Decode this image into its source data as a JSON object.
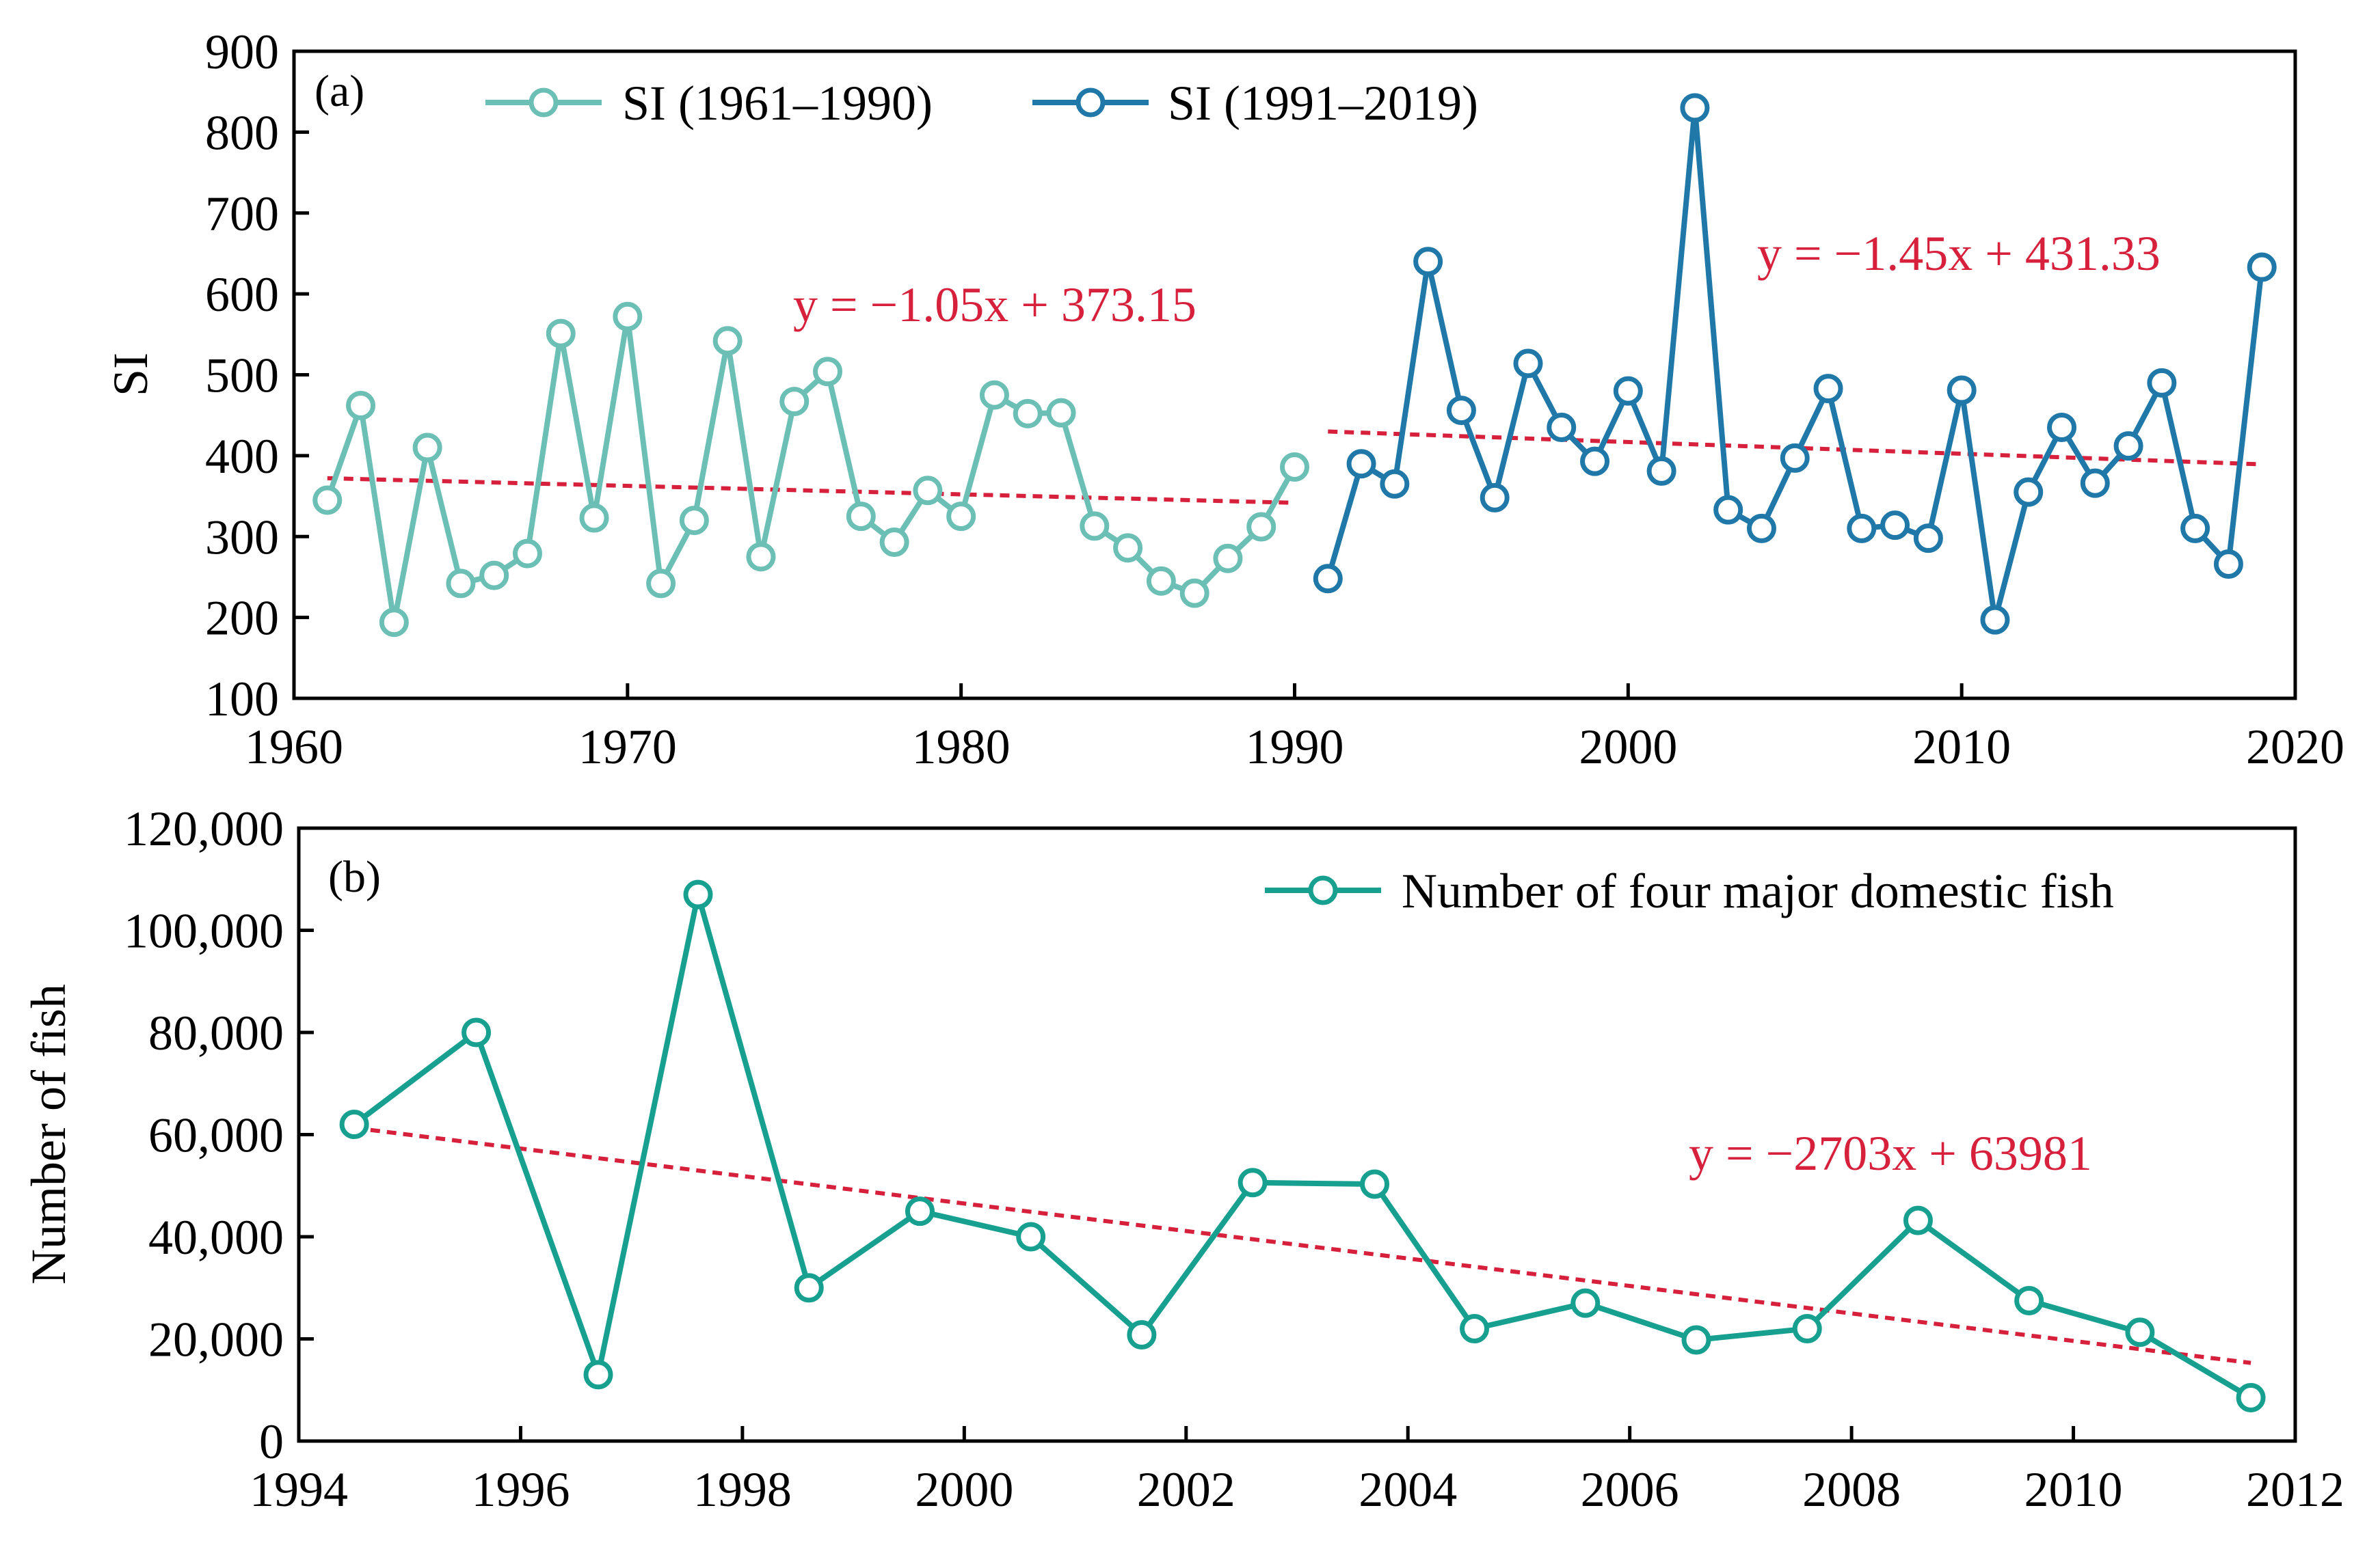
{
  "chart_data": [
    {
      "type": "line",
      "panel_label": "(a)",
      "ylabel": "SI",
      "xlim": [
        1960,
        2020
      ],
      "ylim": [
        100,
        900
      ],
      "x_ticks": [
        1960,
        1970,
        1980,
        1990,
        2000,
        2010,
        2020
      ],
      "y_ticks": [
        100,
        200,
        300,
        400,
        500,
        600,
        700,
        800,
        900
      ],
      "legend_position": "top-left",
      "series": [
        {
          "name": "SI (1961–1990)",
          "color": "#6cbfb5",
          "x": [
            1961,
            1962,
            1963,
            1964,
            1965,
            1966,
            1967,
            1968,
            1969,
            1970,
            1971,
            1972,
            1973,
            1974,
            1975,
            1976,
            1977,
            1978,
            1979,
            1980,
            1981,
            1982,
            1983,
            1984,
            1985,
            1986,
            1987,
            1988,
            1989,
            1990
          ],
          "y": [
            345,
            462,
            194,
            410,
            242,
            252,
            279,
            551,
            323,
            572,
            242,
            320,
            542,
            275,
            467,
            504,
            325,
            293,
            357,
            325,
            475,
            452,
            453,
            313,
            286,
            245,
            230,
            273,
            312,
            386
          ]
        },
        {
          "name": "SI (1991–2019)",
          "color": "#1f78a8",
          "x": [
            1991,
            1992,
            1993,
            1994,
            1995,
            1996,
            1997,
            1998,
            1999,
            2000,
            2001,
            2002,
            2003,
            2004,
            2005,
            2006,
            2007,
            2008,
            2009,
            2010,
            2011,
            2012,
            2013,
            2014,
            2015,
            2016,
            2017,
            2018,
            2019
          ],
          "y": [
            248,
            390,
            365,
            640,
            456,
            348,
            514,
            435,
            393,
            480,
            381,
            830,
            333,
            310,
            397,
            483,
            310,
            314,
            298,
            481,
            197,
            355,
            435,
            366,
            412,
            490,
            310,
            266,
            633
          ]
        }
      ],
      "trendlines": [
        {
          "equation": "y = −1.05x + 373.15",
          "x": [
            1961,
            1990
          ],
          "y": [
            372.1,
            341.7
          ],
          "color": "#d6203c"
        },
        {
          "equation": "y = −1.45x + 431.33",
          "x": [
            1991,
            2019
          ],
          "y": [
            429.9,
            389.3
          ],
          "color": "#d6203c"
        }
      ]
    },
    {
      "type": "line",
      "panel_label": "(b)",
      "ylabel": "Number of fish",
      "xlim": [
        1994,
        2012
      ],
      "ylim": [
        0,
        120000
      ],
      "x_ticks": [
        1994,
        1996,
        1998,
        2000,
        2002,
        2004,
        2006,
        2008,
        2010,
        2012
      ],
      "y_ticks": [
        0,
        20000,
        40000,
        60000,
        80000,
        100000,
        120000
      ],
      "y_tick_labels": [
        "0",
        "20,000",
        "40,000",
        "60,000",
        "80,000",
        "100,000",
        "120,000"
      ],
      "legend_position": "top-right",
      "series": [
        {
          "name": "Number of four major domestic fish",
          "color": "#17a090",
          "x": [
            1994.5,
            1995.6,
            1996.7,
            1997.6,
            1998.6,
            1999.6,
            2000.6,
            2001.6,
            2002.6,
            2003.7,
            2004.6,
            2005.6,
            2006.6,
            2007.6,
            2008.6,
            2009.6,
            2010.6,
            2011.6
          ],
          "y": [
            62000,
            80000,
            13000,
            107000,
            30000,
            45000,
            40000,
            20800,
            50600,
            50300,
            22000,
            27000,
            19800,
            22000,
            43200,
            27500,
            21300,
            8500
          ]
        }
      ],
      "trendlines": [
        {
          "equation": "y = −2703x + 63981",
          "x": [
            1994.5,
            2011.6
          ],
          "y": [
            61300,
            15300
          ],
          "color": "#d6203c"
        }
      ]
    }
  ]
}
